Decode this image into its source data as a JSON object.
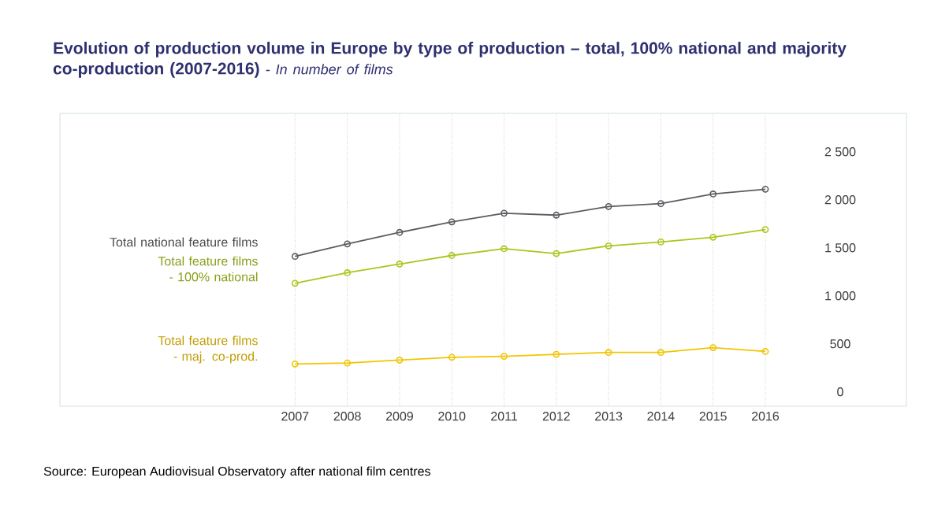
{
  "chart_data": {
    "type": "line",
    "title": "Evolution of production volume in Europe by type of production – total, 100% national and majority co-production (2007-2016)",
    "subtitle": "- In number of films",
    "categories": [
      "2007",
      "2008",
      "2009",
      "2010",
      "2011",
      "2012",
      "2013",
      "2014",
      "2015",
      "2016"
    ],
    "series": [
      {
        "name": "Total national feature films",
        "color": "#5a5e62",
        "values": [
          1410,
          1540,
          1660,
          1770,
          1860,
          1840,
          1930,
          1960,
          2060,
          2110
        ]
      },
      {
        "name": "Total feature films - 100% national",
        "color": "#a8c81e",
        "values": [
          1130,
          1240,
          1330,
          1420,
          1490,
          1440,
          1520,
          1560,
          1610,
          1690
        ]
      },
      {
        "name": "Total feature films - maj. co-prod.",
        "color": "#f2c500",
        "values": [
          290,
          300,
          330,
          360,
          370,
          390,
          410,
          410,
          460,
          420
        ]
      }
    ],
    "ylim": [
      -150,
      2900
    ],
    "yticks": [
      {
        "value": 0,
        "label": "0"
      },
      {
        "value": 500,
        "label": "500"
      },
      {
        "value": 1000,
        "label": "1 000"
      },
      {
        "value": 1500,
        "label": "1 500"
      },
      {
        "value": 2000,
        "label": "2 000"
      },
      {
        "value": 2500,
        "label": "2 500"
      }
    ],
    "grid": "x",
    "marker": "circle",
    "legend": false,
    "annotations": [
      "Source: European Audiovisual Observatory after national film centres"
    ]
  }
}
